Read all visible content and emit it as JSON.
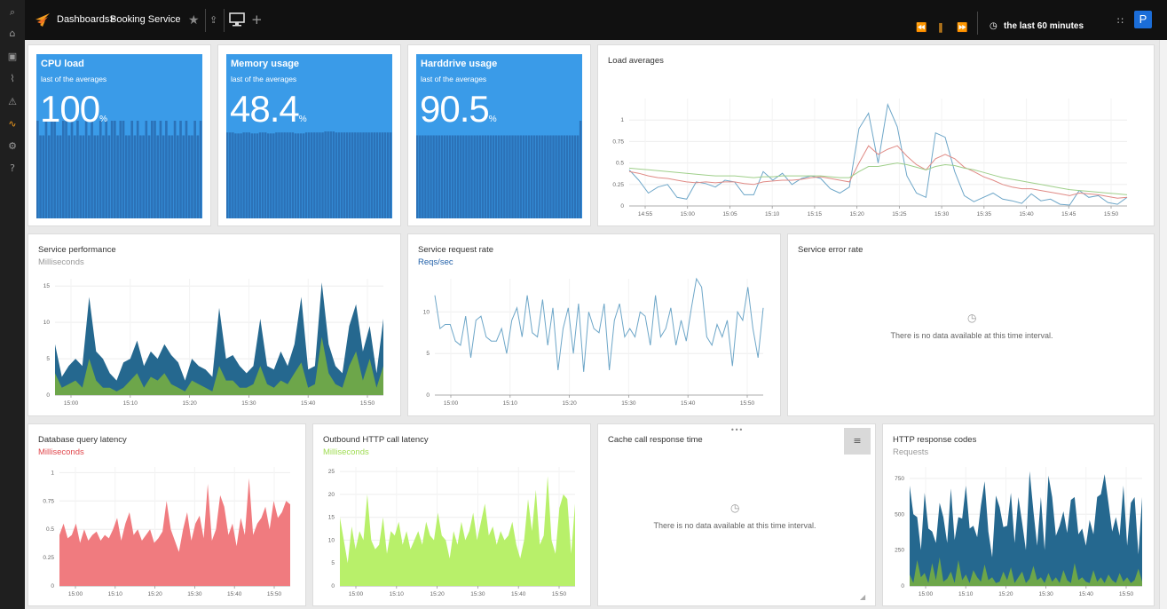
{
  "topbar": {
    "breadcrumb_root": "Dashboards>",
    "breadcrumb_current": "Booking Service",
    "time_range": "the last 60 minutes",
    "user_initial": "P"
  },
  "sidebar": {
    "icons": [
      "search-icon",
      "home-icon",
      "dashboard-icon",
      "topology-icon",
      "alert-icon",
      "metrics-icon",
      "settings-icon",
      "help-icon"
    ]
  },
  "tiles": [
    {
      "title": "CPU load",
      "subtitle": "last of the averages",
      "value": "100",
      "unit": "%",
      "fill_pct": [
        100,
        85,
        85,
        100,
        85,
        100,
        100,
        85,
        85,
        100,
        100,
        85,
        100,
        85,
        100,
        85,
        85,
        100,
        85,
        100,
        85,
        85,
        100,
        85,
        100,
        85,
        100,
        100,
        85,
        100,
        100,
        85,
        85,
        100,
        85,
        100,
        85,
        85,
        100,
        85,
        100,
        100,
        85,
        100,
        85,
        100,
        85,
        85,
        100,
        85,
        100,
        85,
        100,
        85,
        85,
        100,
        85,
        100
      ]
    },
    {
      "title": "Memory usage",
      "subtitle": "last of the averages",
      "value": "48.4",
      "unit": "%",
      "fill_pct": [
        88,
        88,
        88,
        87,
        87,
        87,
        88,
        88,
        88,
        87,
        87,
        87,
        88,
        88,
        88,
        87,
        87,
        87,
        88,
        88,
        88,
        88,
        88,
        88,
        88,
        87,
        87,
        87,
        87,
        88,
        88,
        88,
        88,
        88,
        88,
        88,
        89,
        89,
        89,
        89,
        88,
        88,
        88,
        88,
        88,
        88,
        88,
        88,
        88,
        88,
        88,
        88,
        88,
        88,
        88,
        88,
        88,
        88,
        88,
        88,
        88
      ]
    },
    {
      "title": "Harddrive usage",
      "subtitle": "last of the averages",
      "value": "90.5",
      "unit": "%",
      "fill_pct": [
        85,
        85,
        85,
        85,
        85,
        85,
        85,
        85,
        85,
        85,
        85,
        85,
        85,
        85,
        85,
        85,
        85,
        85,
        85,
        85,
        85,
        85,
        85,
        85,
        85,
        85,
        85,
        85,
        85,
        85,
        85,
        85,
        85,
        85,
        85,
        85,
        85,
        85,
        85,
        85,
        85,
        85,
        85,
        85,
        85,
        85,
        85,
        85,
        85,
        85,
        85,
        85,
        85,
        85,
        85,
        85,
        85,
        85,
        85,
        85,
        100
      ]
    }
  ],
  "panels": {
    "load_averages": {
      "title": "Load averages"
    },
    "service_performance": {
      "title": "Service performance",
      "unit": "Milliseconds"
    },
    "service_request_rate": {
      "title": "Service request rate",
      "unit": "Reqs/sec"
    },
    "service_error_rate": {
      "title": "Service error rate",
      "no_data": "There is no data available at this time interval."
    },
    "database_query_latency": {
      "title": "Database query latency",
      "unit": "Milliseconds"
    },
    "outbound_http_latency": {
      "title": "Outbound HTTP call latency",
      "unit": "Milliseconds"
    },
    "cache_call_response_time": {
      "title": "Cache call response time",
      "no_data": "There is no data available at this time interval."
    },
    "http_response_codes": {
      "title": "HTTP response codes",
      "unit": "Requests"
    }
  },
  "colors": {
    "tile_bg": "#3a9be8",
    "tile_bar": "#2b72b8",
    "teal": "#25688f",
    "green": "#6da64a",
    "red": "#f07b7f",
    "lime": "#b8f06a",
    "line_blue": "#6da6c8",
    "line_red": "#e08a85",
    "line_green": "#9fcf8a"
  },
  "chart_data": [
    {
      "id": "load_averages",
      "type": "line",
      "x_ticks": [
        "14:55",
        "15:00",
        "15:05",
        "15:10",
        "15:15",
        "15:20",
        "15:25",
        "15:30",
        "15:35",
        "15:40",
        "15:45",
        "15:50"
      ],
      "y_ticks": [
        "0",
        "0.25",
        "0.5",
        "0.75",
        "1"
      ],
      "ylim": [
        0,
        1.25
      ],
      "series": [
        {
          "color": "#6da6c8",
          "values": [
            0.42,
            0.3,
            0.15,
            0.22,
            0.25,
            0.1,
            0.08,
            0.28,
            0.26,
            0.22,
            0.3,
            0.28,
            0.13,
            0.13,
            0.4,
            0.3,
            0.38,
            0.25,
            0.32,
            0.35,
            0.32,
            0.2,
            0.15,
            0.22,
            0.9,
            1.08,
            0.5,
            1.18,
            0.92,
            0.35,
            0.15,
            0.1,
            0.85,
            0.8,
            0.4,
            0.12,
            0.05,
            0.1,
            0.15,
            0.08,
            0.06,
            0.03,
            0.14,
            0.06,
            0.08,
            0.02,
            0.01,
            0.18,
            0.1,
            0.12,
            0.04,
            0.02,
            0.1
          ]
        },
        {
          "color": "#e08a85",
          "values": [
            0.4,
            0.38,
            0.35,
            0.33,
            0.32,
            0.3,
            0.28,
            0.27,
            0.28,
            0.27,
            0.28,
            0.28,
            0.26,
            0.25,
            0.28,
            0.29,
            0.3,
            0.3,
            0.31,
            0.33,
            0.34,
            0.32,
            0.3,
            0.28,
            0.5,
            0.7,
            0.6,
            0.66,
            0.7,
            0.58,
            0.48,
            0.42,
            0.55,
            0.6,
            0.55,
            0.45,
            0.4,
            0.34,
            0.3,
            0.25,
            0.22,
            0.2,
            0.2,
            0.18,
            0.16,
            0.14,
            0.12,
            0.15,
            0.14,
            0.13,
            0.11,
            0.09,
            0.1
          ]
        },
        {
          "color": "#9fcf8a",
          "values": [
            0.44,
            0.43,
            0.42,
            0.41,
            0.4,
            0.39,
            0.38,
            0.37,
            0.36,
            0.35,
            0.35,
            0.35,
            0.34,
            0.33,
            0.34,
            0.34,
            0.35,
            0.35,
            0.35,
            0.35,
            0.35,
            0.34,
            0.33,
            0.33,
            0.4,
            0.46,
            0.46,
            0.48,
            0.5,
            0.48,
            0.45,
            0.42,
            0.46,
            0.48,
            0.47,
            0.44,
            0.42,
            0.39,
            0.36,
            0.33,
            0.31,
            0.29,
            0.27,
            0.25,
            0.23,
            0.21,
            0.19,
            0.18,
            0.17,
            0.16,
            0.15,
            0.14,
            0.13
          ]
        }
      ]
    },
    {
      "id": "service_performance",
      "type": "area",
      "x_ticks": [
        "15:00",
        "15:10",
        "15:20",
        "15:30",
        "15:40",
        "15:50"
      ],
      "y_ticks": [
        "0",
        "5",
        "10",
        "15"
      ],
      "ylim": [
        0,
        16
      ],
      "series": [
        {
          "color": "#25688f",
          "values": [
            7,
            2.5,
            4,
            5,
            4,
            13.5,
            6,
            5,
            3,
            2,
            4.5,
            5,
            7.5,
            4,
            6,
            5,
            7,
            5.5,
            4.5,
            2,
            5,
            4,
            3.5,
            2.5,
            12,
            5,
            5.5,
            4,
            3,
            4,
            10.5,
            4,
            3.5,
            6,
            4,
            7,
            13.5,
            3.5,
            4,
            15.5,
            7,
            4,
            3,
            9.5,
            12.5,
            6,
            9.5,
            3,
            10.5
          ]
        },
        {
          "color": "#6da64a",
          "values": [
            3,
            1,
            1.5,
            2,
            1,
            5,
            2,
            1,
            1,
            0.5,
            1,
            2,
            3,
            1,
            2.5,
            2,
            3,
            1.5,
            1,
            0.5,
            2,
            1.5,
            1,
            0.5,
            4,
            2,
            2,
            1,
            1,
            1.5,
            4,
            1.5,
            1,
            2,
            1.5,
            3,
            4.5,
            1,
            1.5,
            8,
            3,
            1.5,
            1,
            4,
            6,
            2,
            5,
            1,
            4
          ]
        }
      ]
    },
    {
      "id": "service_request_rate",
      "type": "line",
      "x_ticks": [
        "15:00",
        "15:10",
        "15:20",
        "15:30",
        "15:40",
        "15:50"
      ],
      "y_ticks": [
        "0",
        "5",
        "10"
      ],
      "ylim": [
        0,
        14
      ],
      "series": [
        {
          "color": "#6da6c8",
          "values": [
            12,
            8,
            8.5,
            8.5,
            6.5,
            6,
            9.5,
            4.5,
            9,
            9.5,
            7,
            6.5,
            6.5,
            8,
            5,
            9,
            10.5,
            7,
            12,
            7.5,
            7,
            11.5,
            6,
            10.5,
            3,
            8,
            10.5,
            5,
            11,
            2.8,
            10,
            8,
            7.5,
            11,
            3,
            9,
            11,
            7,
            8,
            7,
            10,
            9.5,
            6,
            12,
            7,
            8,
            10.5,
            6,
            9,
            6.5,
            10.5,
            14,
            13,
            7,
            6,
            8.5,
            7,
            9,
            3.5,
            10,
            9,
            13,
            8,
            4.5,
            10.5
          ]
        }
      ]
    },
    {
      "id": "database_query_latency",
      "type": "area",
      "x_ticks": [
        "15:00",
        "15:10",
        "15:20",
        "15:30",
        "15:40",
        "15:50"
      ],
      "y_ticks": [
        "0",
        "0.25",
        "0.5",
        "0.75",
        "1"
      ],
      "ylim": [
        0,
        1.05
      ],
      "series": [
        {
          "color": "#f07b7f",
          "values": [
            0.45,
            0.55,
            0.42,
            0.45,
            0.55,
            0.38,
            0.5,
            0.4,
            0.45,
            0.48,
            0.4,
            0.45,
            0.42,
            0.5,
            0.6,
            0.4,
            0.55,
            0.65,
            0.45,
            0.5,
            0.4,
            0.45,
            0.5,
            0.38,
            0.42,
            0.48,
            0.75,
            0.5,
            0.4,
            0.3,
            0.5,
            0.65,
            0.4,
            0.55,
            0.62,
            0.42,
            0.9,
            0.4,
            0.5,
            0.8,
            0.7,
            0.45,
            0.55,
            0.35,
            0.6,
            0.45,
            0.95,
            0.45,
            0.55,
            0.6,
            0.7,
            0.5,
            0.75,
            0.6,
            0.65,
            0.75,
            0.72
          ]
        }
      ]
    },
    {
      "id": "outbound_http_latency",
      "type": "area",
      "x_ticks": [
        "15:00",
        "15:10",
        "15:20",
        "15:30",
        "15:40",
        "15:50"
      ],
      "y_ticks": [
        "0",
        "5",
        "10",
        "15",
        "20",
        "25"
      ],
      "ylim": [
        0,
        26
      ],
      "series": [
        {
          "color": "#b8f06a",
          "values": [
            15,
            10,
            5,
            13,
            8,
            12,
            10,
            20,
            10,
            8,
            9,
            15,
            7,
            12,
            11,
            14,
            9,
            12,
            8,
            10,
            12,
            9,
            14,
            11,
            10,
            16,
            11,
            10,
            6,
            12,
            9,
            14,
            10,
            12,
            16,
            10,
            14,
            18,
            11,
            13,
            9,
            12,
            10,
            11,
            14,
            9,
            6,
            10,
            19,
            12,
            21,
            9,
            11,
            24,
            10,
            7,
            17,
            20,
            19,
            7,
            18
          ]
        }
      ]
    },
    {
      "id": "http_response_codes",
      "type": "area",
      "x_ticks": [
        "15:00",
        "15:10",
        "15:20",
        "15:30",
        "15:40",
        "15:50"
      ],
      "y_ticks": [
        "0",
        "250",
        "500",
        "750"
      ],
      "ylim": [
        0,
        830
      ],
      "series": [
        {
          "color": "#25688f",
          "values": [
            700,
            500,
            480,
            250,
            650,
            400,
            380,
            300,
            580,
            480,
            300,
            680,
            320,
            480,
            470,
            700,
            400,
            420,
            340,
            560,
            730,
            380,
            200,
            630,
            550,
            410,
            420,
            650,
            300,
            620,
            440,
            250,
            800,
            520,
            280,
            620,
            250,
            770,
            620,
            350,
            420,
            520,
            370,
            600,
            620,
            360,
            400,
            280,
            460,
            360,
            620,
            640,
            780,
            580,
            380,
            480,
            350,
            700,
            280,
            580,
            620,
            220,
            620
          ]
        },
        {
          "color": "#6da64a",
          "values": [
            80,
            20,
            180,
            60,
            90,
            20,
            160,
            40,
            200,
            30,
            50,
            100,
            20,
            180,
            40,
            80,
            20,
            110,
            60,
            30,
            150,
            40,
            60,
            20,
            30,
            100,
            40,
            130,
            20,
            60,
            100,
            20,
            50,
            140,
            40,
            60,
            20,
            90,
            30,
            60,
            20,
            110,
            40,
            20,
            160,
            40,
            60,
            30,
            20,
            110,
            30,
            60,
            20,
            80,
            40,
            20,
            90,
            30,
            60,
            20,
            40,
            120,
            30
          ]
        }
      ]
    }
  ]
}
